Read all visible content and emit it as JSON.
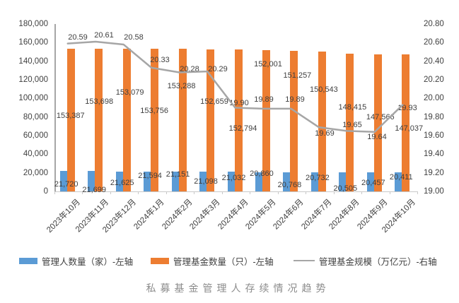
{
  "chart_data": {
    "type": "bar+line",
    "title": "私募基金管理人存续情况趋势",
    "categories": [
      "2023年10月",
      "2023年11月",
      "2023年12月",
      "2024年1月",
      "2024年2月",
      "2024年3月",
      "2024年4月",
      "2024年5月",
      "2024年6月",
      "2024年7月",
      "2024年8月",
      "2024年9月",
      "2024年10月"
    ],
    "series": [
      {
        "name": "管理人数量（家）-左轴",
        "type": "bar",
        "axis": "left",
        "color": "#5B9BD5",
        "values": [
          21720,
          21699,
          21625,
          21594,
          21151,
          21098,
          21032,
          20860,
          20768,
          20732,
          20505,
          20457,
          20411
        ],
        "labels": [
          "21,720",
          "21,699",
          "21,625",
          "21,594",
          "21,151",
          "21,098",
          "21,032",
          "20,860",
          "20,768",
          "20,732",
          "20,505",
          "20,457",
          "20,411"
        ]
      },
      {
        "name": "管理基金数量（只）-左轴",
        "type": "bar",
        "axis": "left",
        "color": "#ED7D31",
        "values": [
          153387,
          153698,
          153079,
          153756,
          153288,
          152659,
          152794,
          152001,
          151257,
          150543,
          148415,
          147566,
          147037
        ],
        "labels": [
          "153,387",
          "153,698",
          "153,079",
          "153,756",
          "153,288",
          "152,659",
          "152,794",
          "152,001",
          "151,257",
          "150,543",
          "148,415",
          "147,566",
          "147,037"
        ]
      },
      {
        "name": "管理基金规模（万亿元）-右轴",
        "type": "line",
        "axis": "right",
        "color": "#A6A6A6",
        "values": [
          20.59,
          20.61,
          20.58,
          20.33,
          20.28,
          20.29,
          19.9,
          19.89,
          19.89,
          19.69,
          19.65,
          19.64,
          19.93
        ],
        "labels": [
          "20.59",
          "20.61",
          "20.58",
          "20.33",
          "20.28",
          "20.29",
          "19.90",
          "19.89",
          "19.89",
          "19.69",
          "19.65",
          "19.64",
          "19.93"
        ]
      }
    ],
    "left_axis": {
      "min": 0,
      "max": 180000,
      "step": 20000,
      "tick_labels": [
        "180,000",
        "160,000",
        "140,000",
        "120,000",
        "100,000",
        "80,000",
        "60,000",
        "40,000",
        "20,000",
        "0"
      ]
    },
    "right_axis": {
      "min": 19.0,
      "max": 20.8,
      "step": 0.2,
      "tick_labels": [
        "20.80",
        "20.60",
        "20.40",
        "20.20",
        "20.00",
        "19.80",
        "19.60",
        "19.40",
        "19.20",
        "19.00"
      ]
    },
    "grid": false,
    "legend_position": "bottom"
  }
}
